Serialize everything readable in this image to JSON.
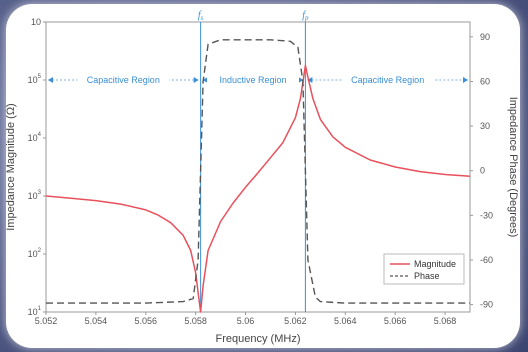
{
  "chart_data": {
    "type": "line",
    "xlabel": "Frequency (MHz)",
    "ylabel_left": "Impedance Magnitude (Ω)",
    "ylabel_right": "Impedance Phase (Degrees)",
    "xlim": [
      5.052,
      5.069
    ],
    "x_ticks": [
      "5.052",
      "5.054",
      "5.056",
      "5.058",
      "5.06",
      "5.062",
      "5.064",
      "5.066",
      "5.068"
    ],
    "ylim_left_log10": [
      1,
      6
    ],
    "y_left_ticks": [
      {
        "base": "10",
        "exp": "1",
        "v": 1
      },
      {
        "base": "10",
        "exp": "2",
        "v": 2
      },
      {
        "base": "10",
        "exp": "3",
        "v": 3
      },
      {
        "base": "10",
        "exp": "4",
        "v": 4
      },
      {
        "base": "10",
        "exp": "5",
        "v": 5
      },
      {
        "base": "10",
        "exp": "",
        "v": 6
      }
    ],
    "ylim_right": [
      -95,
      100
    ],
    "y_right_ticks": [
      "90",
      "60",
      "30",
      "0",
      "-30",
      "-60",
      "-90"
    ],
    "markers": [
      {
        "label": "fs",
        "x": 5.0582
      },
      {
        "label": "fp",
        "x": 5.0624
      }
    ],
    "regions": [
      {
        "label": "Capacitive Region",
        "x0": 5.052,
        "x1": 5.0582
      },
      {
        "label": "Inductive Region",
        "x0": 5.0582,
        "x1": 5.0624
      },
      {
        "label": "Capacitive Region",
        "x0": 5.0624,
        "x1": 5.069
      }
    ],
    "region_arrow_level_log10": 5.0,
    "series": [
      {
        "name": "Magnitude",
        "color": "#e8505b",
        "style": "solid",
        "x": [
          5.052,
          5.053,
          5.054,
          5.055,
          5.056,
          5.0565,
          5.057,
          5.0575,
          5.0578,
          5.058,
          5.0581,
          5.0582,
          5.0583,
          5.0585,
          5.059,
          5.0595,
          5.06,
          5.0605,
          5.061,
          5.0615,
          5.062,
          5.0622,
          5.0624,
          5.0625,
          5.0627,
          5.063,
          5.0635,
          5.064,
          5.065,
          5.066,
          5.067,
          5.068,
          5.069
        ],
        "y_log10": [
          3.0,
          2.96,
          2.92,
          2.86,
          2.76,
          2.67,
          2.54,
          2.32,
          2.06,
          1.68,
          1.34,
          1.0,
          1.45,
          2.06,
          2.56,
          2.88,
          3.15,
          3.4,
          3.66,
          3.92,
          4.35,
          4.68,
          5.25,
          5.05,
          4.68,
          4.32,
          4.02,
          3.84,
          3.62,
          3.5,
          3.42,
          3.37,
          3.34
        ]
      },
      {
        "name": "Phase",
        "color": "#555555",
        "style": "dashed",
        "x": [
          5.052,
          5.054,
          5.056,
          5.0575,
          5.0579,
          5.0581,
          5.0582,
          5.0583,
          5.0585,
          5.059,
          5.06,
          5.061,
          5.0618,
          5.0621,
          5.0623,
          5.0624,
          5.0625,
          5.0628,
          5.063,
          5.064,
          5.066,
          5.068,
          5.069
        ],
        "y_deg": [
          -89,
          -89,
          -89,
          -88,
          -86,
          -60,
          0,
          60,
          85,
          88,
          88,
          88,
          87,
          83,
          60,
          0,
          -60,
          -85,
          -88,
          -89,
          -89,
          -89,
          -89
        ]
      }
    ],
    "legend": {
      "position": "bottom-right",
      "entries": [
        "Magnitude",
        "Phase"
      ]
    }
  }
}
